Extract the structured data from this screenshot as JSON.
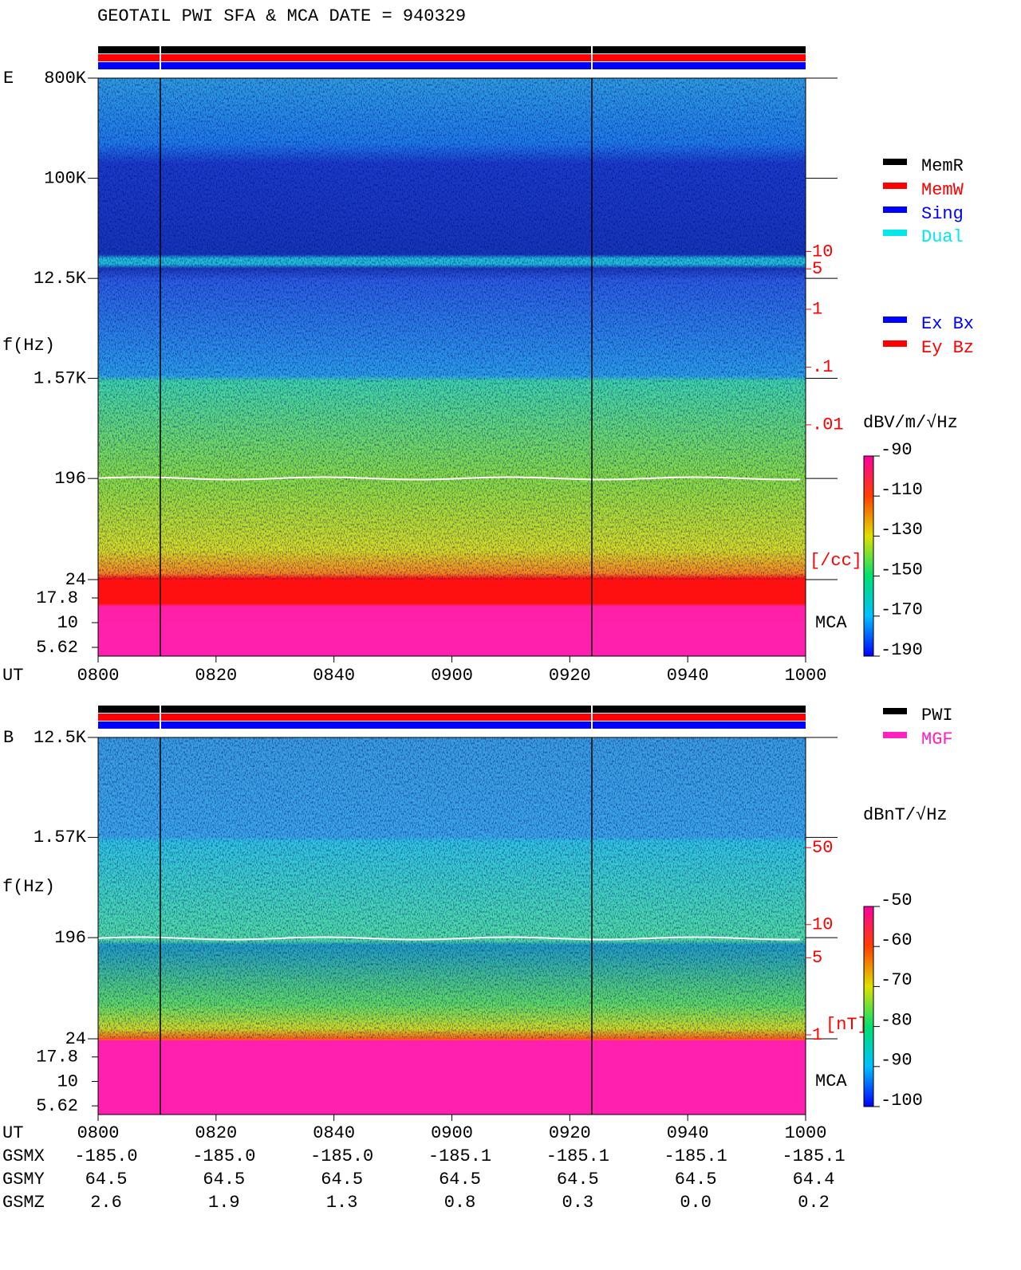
{
  "title": "GEOTAIL  PWI SFA & MCA   DATE = 940329",
  "chart_data": [
    {
      "type": "spectrogram",
      "panel_label": "E",
      "y_label": "f(Hz)",
      "x_label": "UT",
      "xticks": [
        "0800",
        "0820",
        "0840",
        "0900",
        "0920",
        "0940",
        "1000"
      ],
      "yscale": "log",
      "ylim": [
        24,
        800000
      ],
      "yticks": [
        {
          "value": 800000,
          "label": "800K"
        },
        {
          "value": 100000,
          "label": "100K"
        },
        {
          "value": 12500,
          "label": "12.5K"
        },
        {
          "value": 1570,
          "label": "1.57K"
        },
        196,
        24
      ],
      "mca_label": "MCA",
      "mca_ylim": [
        4.58,
        27.3
      ],
      "mca_yticks": [
        17.8,
        10,
        5.62
      ],
      "y2scale": "log",
      "y2lim": [
        2.1e-05,
        10000
      ],
      "y2ticks": [
        10,
        5,
        1,
        {
          "value": 0.1,
          "label": ".1"
        },
        {
          "value": 0.01,
          "label": ".01"
        }
      ],
      "y2_unit": "[/cc]",
      "colorbar": {
        "label": "dBV/m/√Hz",
        "clim": [
          -190,
          -90
        ],
        "ticks": [
          -90,
          -110,
          -130,
          -150,
          -170,
          -190
        ]
      },
      "legend": [
        {
          "name": "MemR",
          "color": "#000000"
        },
        {
          "name": "MemW",
          "color": "#ff0000"
        },
        {
          "name": "Sing",
          "color": "#0000ff"
        },
        {
          "name": "Dual",
          "color": "#00e8e8"
        }
      ],
      "legend2": [
        {
          "name": "Ex Bx",
          "color": "#0000ff"
        },
        {
          "name": "Ey Bz",
          "color": "#ff0000"
        }
      ]
    },
    {
      "type": "spectrogram",
      "panel_label": "B",
      "y_label": "f(Hz)",
      "x_label": "UT",
      "xticks": [
        "0800",
        "0820",
        "0840",
        "0900",
        "0920",
        "0940",
        "1000"
      ],
      "yscale": "log",
      "ylim": [
        24,
        12500
      ],
      "yticks": [
        {
          "value": 12500,
          "label": "12.5K"
        },
        {
          "value": 1570,
          "label": "1.57K"
        },
        196,
        24
      ],
      "mca_label": "MCA",
      "mca_ylim": [
        4.58,
        27.3
      ],
      "mca_yticks": [
        17.8,
        10,
        5.62
      ],
      "y2scale": "log",
      "y2lim": [
        0.92,
        500
      ],
      "y2ticks": [
        50,
        10,
        5,
        1
      ],
      "y2_unit": "[nT]",
      "colorbar": {
        "label": "dBnT/√Hz",
        "clim": [
          -100,
          -50
        ],
        "ticks": [
          -50,
          -60,
          -70,
          -80,
          -90,
          -100
        ]
      },
      "legend": [
        {
          "name": "PWI",
          "color": "#000000"
        },
        {
          "name": "MGF",
          "color": "#ff20c0"
        }
      ]
    }
  ],
  "orbit": {
    "rows": [
      {
        "name": "GSMX",
        "values": [
          "-185.0",
          "-185.0",
          "-185.0",
          "-185.1",
          "-185.1",
          "-185.1",
          "-185.1"
        ]
      },
      {
        "name": "GSMY",
        "values": [
          "64.5",
          "64.5",
          "64.5",
          "64.5",
          "64.5",
          "64.5",
          "64.4"
        ]
      },
      {
        "name": "GSMZ",
        "values": [
          "2.6",
          "1.9",
          "1.3",
          "0.8",
          "0.3",
          "0.0",
          "0.2"
        ]
      }
    ]
  }
}
